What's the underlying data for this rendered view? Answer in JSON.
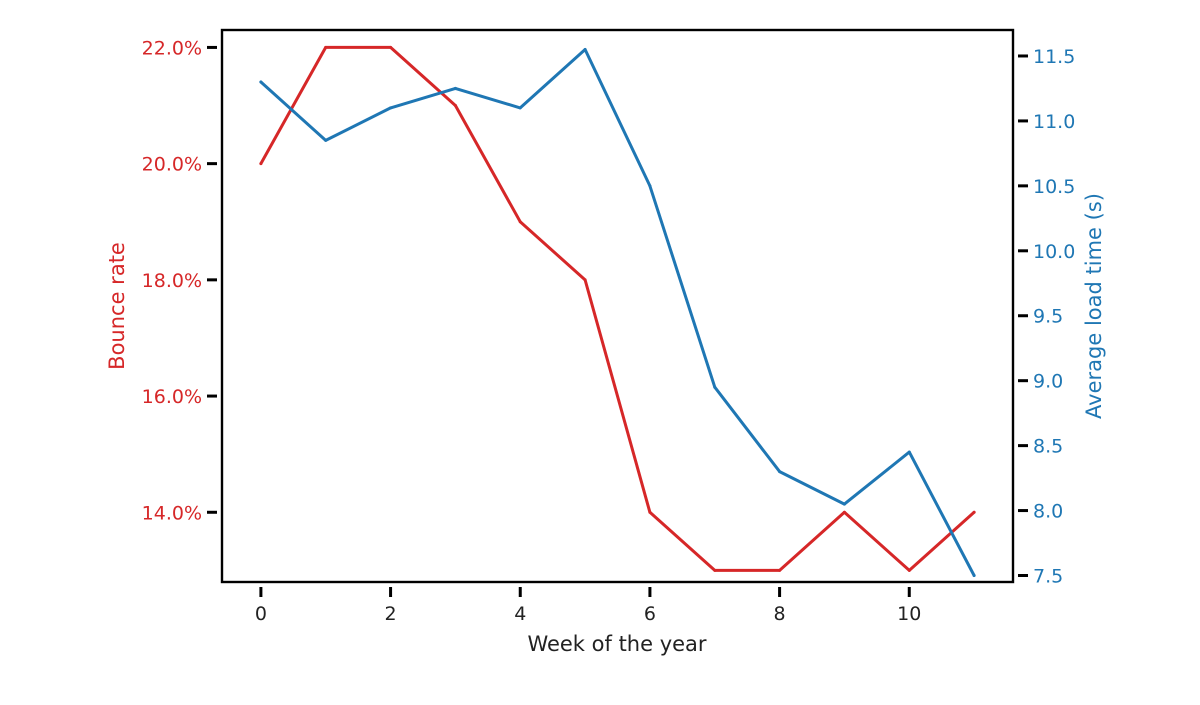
{
  "chart_data": {
    "type": "line",
    "xlabel": "Week of the year",
    "ylabel_left": "Bounce rate",
    "ylabel_right": "Average load time (s)",
    "x": [
      0,
      1,
      2,
      3,
      4,
      5,
      6,
      7,
      8,
      9,
      10,
      11
    ],
    "xlim": [
      -0.6,
      11.6
    ],
    "x_ticks": [
      0,
      2,
      4,
      6,
      8,
      10
    ],
    "x_tick_labels": [
      "0",
      "2",
      "4",
      "6",
      "8",
      "10"
    ],
    "ylim_left": [
      12.8,
      22.3
    ],
    "y_ticks_left": [
      14.0,
      16.0,
      18.0,
      20.0,
      22.0
    ],
    "y_tick_labels_left": [
      "14.0%",
      "16.0%",
      "18.0%",
      "20.0%",
      "22.0%"
    ],
    "ylim_right": [
      7.45,
      11.7
    ],
    "y_ticks_right": [
      7.5,
      8.0,
      8.5,
      9.0,
      9.5,
      10.0,
      10.5,
      11.0,
      11.5
    ],
    "y_tick_labels_right": [
      "7.5",
      "8.0",
      "8.5",
      "9.0",
      "9.5",
      "10.0",
      "10.5",
      "11.0",
      "11.5"
    ],
    "grid": false,
    "series": [
      {
        "axis": "left",
        "color": "#d62728",
        "values": [
          20.0,
          22.0,
          22.0,
          21.0,
          19.0,
          18.0,
          14.0,
          13.0,
          13.0,
          14.0,
          13.0,
          14.0
        ]
      },
      {
        "axis": "right",
        "color": "#1f77b4",
        "values": [
          11.3,
          10.85,
          11.1,
          11.25,
          11.1,
          11.55,
          10.5,
          8.95,
          8.3,
          8.05,
          8.45,
          7.5
        ]
      }
    ],
    "left_axis_color": "#d62728",
    "right_axis_color": "#1f77b4",
    "frame_color": "#000000"
  }
}
